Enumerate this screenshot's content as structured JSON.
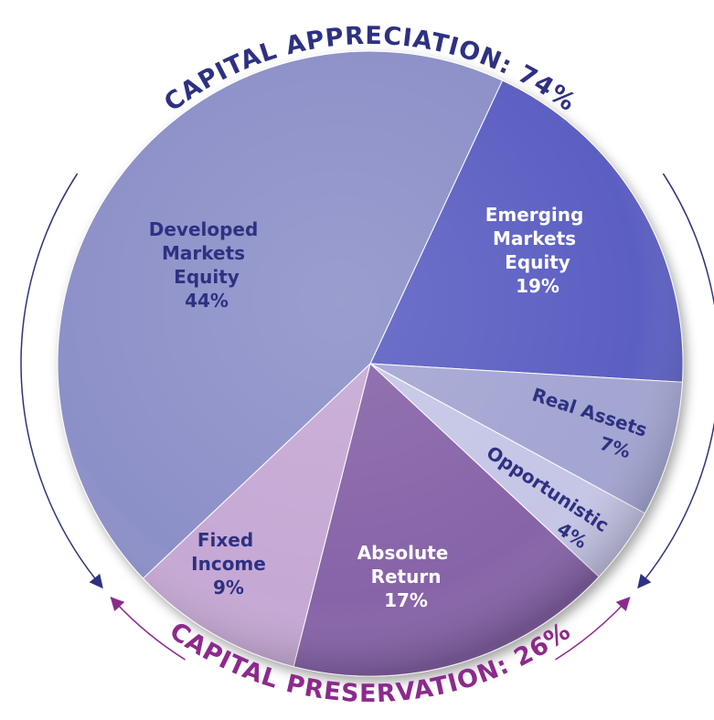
{
  "chart_data": {
    "type": "pie",
    "categories": [
      "Emerging Markets Equity",
      "Real Assets",
      "Opportunistic",
      "Absolute Return",
      "Fixed Income",
      "Developed Markets Equity"
    ],
    "values": [
      19,
      7,
      4,
      17,
      9,
      44
    ],
    "value_labels": [
      "19%",
      "7%",
      "4%",
      "17%",
      "9%",
      "44%"
    ],
    "colors": [
      "#5b5fc2",
      "#a3a5d2",
      "#c5c5e6",
      "#8763a8",
      "#c6a8d4",
      "#8c90c8"
    ],
    "groups": [
      {
        "label": "CAPITAL APPRECIATION: 74%",
        "color": "#2e3182"
      },
      {
        "label": "CAPITAL PRESERVATION: 26%",
        "color": "#8c2a8c"
      }
    ]
  }
}
